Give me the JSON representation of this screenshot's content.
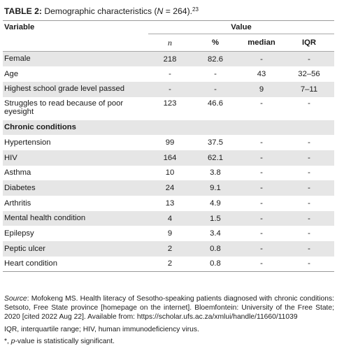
{
  "caption": {
    "label": "TABLE 2:",
    "text_before": "Demographic characteristics (",
    "n_symbol": "N",
    "text_after": " = 264).",
    "reference": "23"
  },
  "header": {
    "variable": "Variable",
    "value": "Value",
    "columns": [
      "n",
      "%",
      "median",
      "IQR"
    ]
  },
  "rows": [
    {
      "label": "Female",
      "n": "218",
      "pct": "82.6",
      "median": "-",
      "iqr": "-"
    },
    {
      "label": "Age",
      "n": "-",
      "pct": "-",
      "median": "43",
      "iqr": "32–56"
    },
    {
      "label": "Highest school grade level passed",
      "n": "-",
      "pct": "-",
      "median": "9",
      "iqr": "7–11"
    },
    {
      "label": "Struggles to read because of poor eyesight",
      "n": "123",
      "pct": "46.6",
      "median": "-",
      "iqr": "-"
    }
  ],
  "section": {
    "label": "Chronic conditions"
  },
  "conditions": [
    {
      "label": "Hypertension",
      "n": "99",
      "pct": "37.5",
      "median": "-",
      "iqr": "-"
    },
    {
      "label": "HIV",
      "n": "164",
      "pct": "62.1",
      "median": "-",
      "iqr": "-"
    },
    {
      "label": "Asthma",
      "n": "10",
      "pct": "3.8",
      "median": "-",
      "iqr": "-"
    },
    {
      "label": "Diabetes",
      "n": "24",
      "pct": "9.1",
      "median": "-",
      "iqr": "-"
    },
    {
      "label": "Arthritis",
      "n": "13",
      "pct": "4.9",
      "median": "-",
      "iqr": "-"
    },
    {
      "label": "Mental health condition",
      "n": "4",
      "pct": "1.5",
      "median": "-",
      "iqr": "-"
    },
    {
      "label": "Epilepsy",
      "n": "9",
      "pct": "3.4",
      "median": "-",
      "iqr": "-"
    },
    {
      "label": "Peptic ulcer",
      "n": "2",
      "pct": "0.8",
      "median": "-",
      "iqr": "-"
    },
    {
      "label": "Heart condition",
      "n": "2",
      "pct": "0.8",
      "median": "-",
      "iqr": "-"
    }
  ],
  "footnotes": {
    "source_label": "Source",
    "source_text": ": Mofokeng MS. Health literacy of Sesotho-speaking patients diagnosed with chronic conditions: Setsoto, Free State province [homepage on the internet]. Bloemfontein: University of the Free State; 2020 [cited 2022 Aug 22]. Available from: https://scholar.ufs.ac.za/xmlui/handle/11660/11039",
    "abbreviations": "IQR, interquartile range; HIV, human immunodeficiency virus.",
    "significance_prefix": "*, ",
    "significance_p": "p",
    "significance_text": "-value is statistically significant."
  }
}
